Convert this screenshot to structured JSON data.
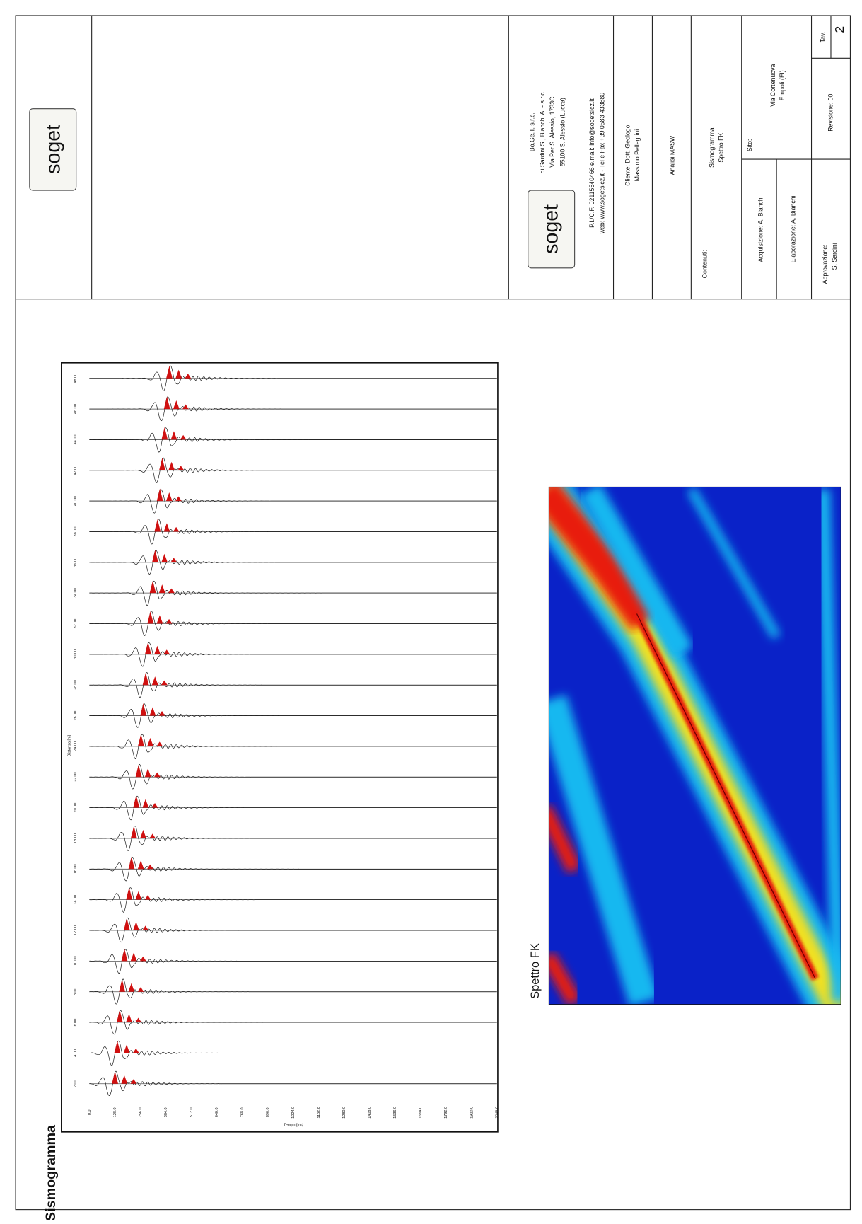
{
  "logo": "soget",
  "company": {
    "lines": [
      "Bo.Ge.T. s.r.c.",
      "di Sardini S., Bianchi A. - s.r.c.",
      "Via Per S. Alessio, 1733C",
      "55100 S. Alessio (Lucca)"
    ],
    "contact": [
      "P.I./C.F. 02115540466 e.mail: info@sogetsicz.it",
      "web: www.sogetsicz.it - Tel e Fax +39 0583 433880"
    ]
  },
  "client": [
    "Cliente: Dott. Geologo",
    "Massimo Pellegrini"
  ],
  "analysis": "Analisi MASW",
  "contents": {
    "label": "Contenuti:",
    "items": [
      "Sismogramma",
      "Spettro FK"
    ]
  },
  "acquisition": "Acquisizione: A. Bianchi",
  "processing": "Elaborazione: A. Bianchi",
  "site": {
    "label": "Sito:",
    "lines": [
      "Via Cortenuova",
      "Empoli (FI)"
    ]
  },
  "approval": {
    "label": "Approvazione:",
    "name": "S. Sardini"
  },
  "revision": "Revisione: 00",
  "sheet": {
    "label": "Tav.",
    "number": "2"
  },
  "seismogram": {
    "title": "Sismogramma",
    "x_label": "Tempo [ms]",
    "y_label": "Distanza [m]",
    "time_ticks": [
      "0.0",
      "128.0",
      "256.0",
      "384.0",
      "512.0",
      "640.0",
      "768.0",
      "896.0",
      "1024.0",
      "1152.0",
      "1280.0",
      "1408.0",
      "1536.0",
      "1664.0",
      "1792.0",
      "1920.0",
      "2048.0"
    ],
    "distance_ticks": [
      "2.00",
      "4.00",
      "6.00",
      "8.00",
      "10.00",
      "12.00",
      "14.00",
      "16.00",
      "18.00",
      "20.00",
      "22.00",
      "24.00",
      "26.00",
      "28.00",
      "30.00",
      "32.00",
      "34.00",
      "36.00",
      "38.00",
      "40.00",
      "42.00",
      "44.00",
      "46.00",
      "48.00"
    ]
  },
  "fk": {
    "title": "Spettro FK"
  }
}
